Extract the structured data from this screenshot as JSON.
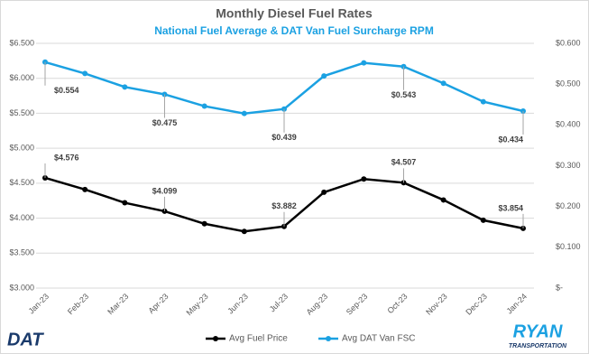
{
  "chart_data": {
    "type": "line",
    "title": "Monthly Diesel Fuel Rates",
    "subtitle": "National Fuel Average & DAT Van Fuel Surcharge RPM",
    "categories": [
      "Jan-23",
      "Feb-23",
      "Mar-23",
      "Apr-23",
      "May-23",
      "Jun-23",
      "Jul-23",
      "Aug-23",
      "Sep-23",
      "Oct-23",
      "Nov-23",
      "Dec-23",
      "Jan-24"
    ],
    "series": [
      {
        "name": "Avg Fuel Price",
        "color": "#000000",
        "values": [
          4.576,
          4.41,
          4.22,
          4.099,
          3.92,
          3.81,
          3.882,
          4.37,
          4.56,
          4.507,
          4.26,
          3.97,
          3.854
        ],
        "value_labels": [
          "$4.576",
          null,
          null,
          "$4.099",
          null,
          null,
          "$3.882",
          null,
          null,
          "$4.507",
          null,
          null,
          "$3.854"
        ]
      },
      {
        "name": "Avg DAT Van FSC",
        "color": "#1ba1e2",
        "axis": "y2",
        "values": [
          0.554,
          0.526,
          0.493,
          0.475,
          0.446,
          0.428,
          0.439,
          0.52,
          0.552,
          0.543,
          0.502,
          0.457,
          0.434
        ],
        "value_labels": [
          "$0.554",
          null,
          null,
          "$0.475",
          null,
          null,
          "$0.439",
          null,
          null,
          "$0.543",
          null,
          null,
          "$0.434"
        ]
      }
    ],
    "ylim": [
      3.0,
      6.5
    ],
    "yticks": [
      {
        "value": 3.0,
        "label": "$3.000"
      },
      {
        "value": 3.5,
        "label": "$3.500"
      },
      {
        "value": 4.0,
        "label": "$4.000"
      },
      {
        "value": 4.5,
        "label": "$4.500"
      },
      {
        "value": 5.0,
        "label": "$5.000"
      },
      {
        "value": 5.5,
        "label": "$5.500"
      },
      {
        "value": 6.0,
        "label": "$6.000"
      },
      {
        "value": 6.5,
        "label": "$6.500"
      }
    ],
    "y2lim": [
      0,
      0.6
    ],
    "y2ticks": [
      {
        "value": 0,
        "label": "$-"
      },
      {
        "value": 0.1,
        "label": "$0.100"
      },
      {
        "value": 0.2,
        "label": "$0.200"
      },
      {
        "value": 0.3,
        "label": "$0.300"
      },
      {
        "value": 0.4,
        "label": "$0.400"
      },
      {
        "value": 0.5,
        "label": "$0.500"
      },
      {
        "value": 0.6,
        "label": "$0.600"
      }
    ],
    "grid": true,
    "legend": "bottom"
  },
  "logos": {
    "left": "DAT",
    "right_top": "RYAN",
    "right_bottom": "TRANSPORTATION"
  }
}
